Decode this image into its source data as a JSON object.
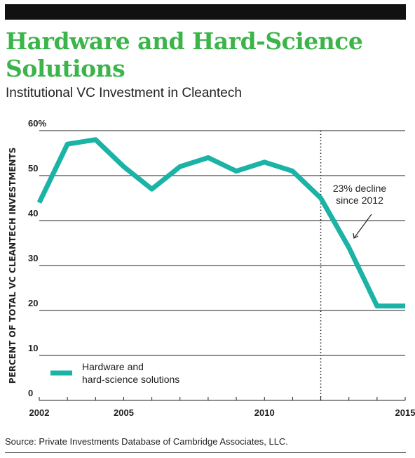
{
  "header": {
    "title": "Hardware and Hard-Science Solutions",
    "subtitle": "Institutional VC Investment in Cleantech"
  },
  "source": "Source: Private Investments Database of Cambridge Associates, LLC.",
  "colors": {
    "title": "#3bb54a",
    "line": "#1ab3a6",
    "bar": "#111111"
  },
  "chart_data": {
    "type": "line",
    "title": "Hardware and Hard-Science Solutions",
    "subtitle": "Institutional VC Investment in Cleantech",
    "ylabel": "PERCENT OF TOTAL VC CLEANTECH INVESTMENTS",
    "xlabel": "",
    "xlim": [
      2002,
      2015
    ],
    "ylim": [
      0,
      60
    ],
    "x_ticks": [
      2002,
      2005,
      2010,
      2015
    ],
    "y_ticks": [
      0,
      10,
      20,
      30,
      40,
      50,
      60
    ],
    "y_tick_labels": [
      "0",
      "10",
      "20",
      "30",
      "40",
      "50",
      "60%"
    ],
    "grid": "horizontal",
    "legend_position": "bottom-left",
    "series": [
      {
        "name": "Hardware and hard-science solutions",
        "legend_lines": [
          "Hardware and",
          "hard-science solutions"
        ],
        "x": [
          2002,
          2003,
          2004,
          2005,
          2006,
          2007,
          2008,
          2009,
          2010,
          2011,
          2012,
          2013,
          2014,
          2015
        ],
        "values": [
          44,
          57,
          58,
          52,
          47,
          52,
          54,
          51,
          53,
          51,
          45,
          34,
          21,
          21
        ]
      }
    ],
    "annotation": {
      "x": 2012,
      "lines": [
        "23% decline",
        "since 2012"
      ]
    }
  }
}
